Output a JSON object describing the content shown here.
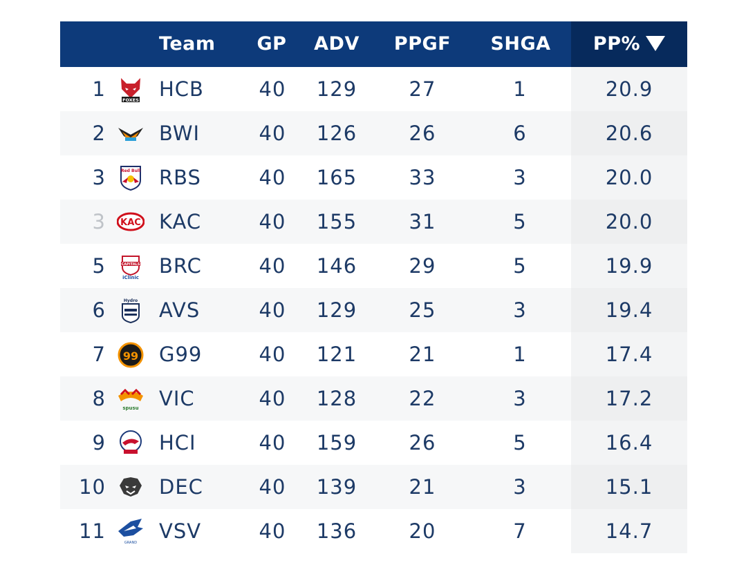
{
  "header": {
    "team": "Team",
    "gp": "GP",
    "adv": "ADV",
    "ppgf": "PPGF",
    "shga": "SHGA",
    "pp": "PP%"
  },
  "colors": {
    "header_bg": "#0d3a7a",
    "sorted_header_bg": "#072a5c",
    "text": "#1d3a66",
    "rank_dim": "#bfc3c8"
  },
  "rows": [
    {
      "rank": "1",
      "team": "HCB",
      "gp": "40",
      "adv": "129",
      "ppgf": "27",
      "shga": "1",
      "pp": "20.9",
      "logo": "fox-logo",
      "dim": false
    },
    {
      "rank": "2",
      "team": "BWI",
      "gp": "40",
      "adv": "126",
      "ppgf": "26",
      "shga": "6",
      "pp": "20.6",
      "logo": "winged-emblem-logo",
      "dim": false
    },
    {
      "rank": "3",
      "team": "RBS",
      "gp": "40",
      "adv": "165",
      "ppgf": "33",
      "shga": "3",
      "pp": "20.0",
      "logo": "red-bull-logo",
      "dim": false
    },
    {
      "rank": "3",
      "team": "KAC",
      "gp": "40",
      "adv": "155",
      "ppgf": "31",
      "shga": "5",
      "pp": "20.0",
      "logo": "kac-oval-logo",
      "dim": true
    },
    {
      "rank": "5",
      "team": "BRC",
      "gp": "40",
      "adv": "146",
      "ppgf": "29",
      "shga": "5",
      "pp": "19.9",
      "logo": "capitals-shield-logo",
      "dim": false
    },
    {
      "rank": "6",
      "team": "AVS",
      "gp": "40",
      "adv": "129",
      "ppgf": "25",
      "shga": "3",
      "pp": "19.4",
      "logo": "hydro-shield-logo",
      "dim": false
    },
    {
      "rank": "7",
      "team": "G99",
      "gp": "40",
      "adv": "121",
      "ppgf": "21",
      "shga": "1",
      "pp": "17.4",
      "logo": "ninety-nine-circle-logo",
      "dim": false
    },
    {
      "rank": "8",
      "team": "VIC",
      "gp": "40",
      "adv": "128",
      "ppgf": "22",
      "shga": "3",
      "pp": "17.2",
      "logo": "capitals-script-logo",
      "dim": false
    },
    {
      "rank": "9",
      "team": "HCI",
      "gp": "40",
      "adv": "159",
      "ppgf": "26",
      "shga": "5",
      "pp": "16.4",
      "logo": "sharks-logo",
      "dim": false
    },
    {
      "rank": "10",
      "team": "DEC",
      "gp": "40",
      "adv": "139",
      "ppgf": "21",
      "shga": "3",
      "pp": "15.1",
      "logo": "panther-head-logo",
      "dim": false
    },
    {
      "rank": "11",
      "team": "VSV",
      "gp": "40",
      "adv": "136",
      "ppgf": "20",
      "shga": "7",
      "pp": "14.7",
      "logo": "eagle-logo",
      "dim": false
    }
  ]
}
